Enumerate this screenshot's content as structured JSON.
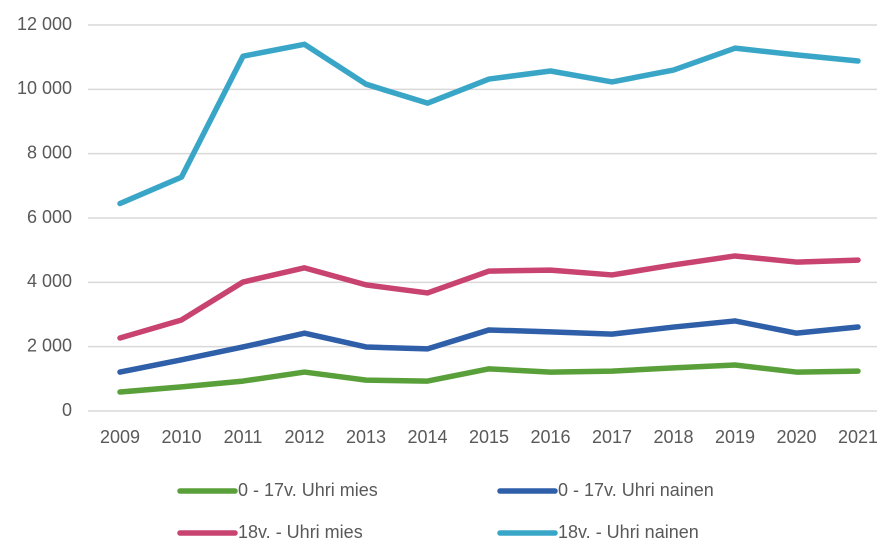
{
  "chart_data": {
    "type": "line",
    "categories": [
      "2009",
      "2010",
      "2011",
      "2012",
      "2013",
      "2014",
      "2015",
      "2016",
      "2017",
      "2018",
      "2019",
      "2020",
      "2021"
    ],
    "series": [
      {
        "name": "0 - 17v. Uhri mies",
        "color": "#5aa03a",
        "values": [
          590,
          750,
          930,
          1210,
          960,
          930,
          1310,
          1210,
          1240,
          1340,
          1430,
          1210,
          1240
        ]
      },
      {
        "name": "0 - 17v. Uhri nainen",
        "color": "#2e5fa8",
        "values": [
          1210,
          1590,
          1990,
          2420,
          1990,
          1930,
          2520,
          2460,
          2390,
          2610,
          2800,
          2420,
          2610
        ]
      },
      {
        "name": "18v. - Uhri mies",
        "color": "#c8436f",
        "values": [
          2270,
          2830,
          4010,
          4450,
          3920,
          3670,
          4350,
          4380,
          4230,
          4540,
          4820,
          4630,
          4690
        ]
      },
      {
        "name": "18v. - Uhri nainen",
        "color": "#3aa6c7",
        "values": [
          6450,
          7270,
          11030,
          11400,
          10160,
          9570,
          10320,
          10570,
          10230,
          10600,
          11280,
          11070,
          10880
        ]
      }
    ],
    "ylim": [
      0,
      12000
    ],
    "yticks": [
      0,
      {
        "value": 2000,
        "label": "2 000"
      },
      {
        "value": 4000,
        "label": "4 000"
      },
      {
        "value": 6000,
        "label": "6 000"
      },
      {
        "value": 8000,
        "label": "8 000"
      },
      {
        "value": 10000,
        "label": "10 000"
      },
      {
        "value": 12000,
        "label": "12 000"
      }
    ],
    "grid": true,
    "legend": "bottom"
  }
}
